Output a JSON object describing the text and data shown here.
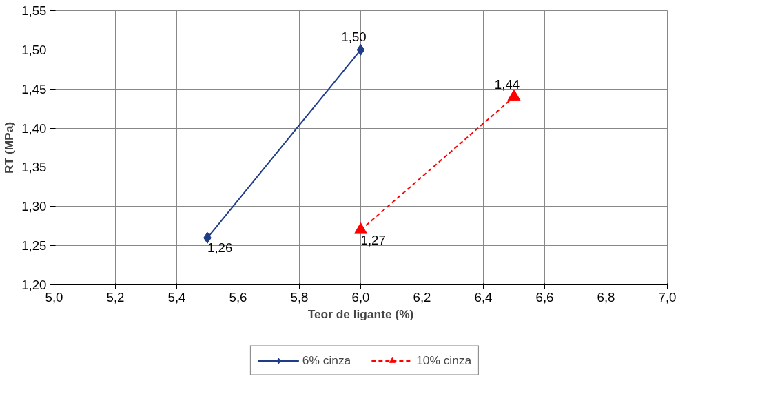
{
  "chart_data": {
    "type": "line",
    "xlabel": "Teor de ligante (%)",
    "ylabel": "RT (MPa)",
    "xlim": [
      5.0,
      7.0
    ],
    "ylim": [
      1.2,
      1.55
    ],
    "xticks": [
      {
        "value": 5.0,
        "label": "5,0"
      },
      {
        "value": 5.2,
        "label": "5,2"
      },
      {
        "value": 5.4,
        "label": "5,4"
      },
      {
        "value": 5.6,
        "label": "5,6"
      },
      {
        "value": 5.8,
        "label": "5,8"
      },
      {
        "value": 6.0,
        "label": "6,0"
      },
      {
        "value": 6.2,
        "label": "6,2"
      },
      {
        "value": 6.4,
        "label": "6,4"
      },
      {
        "value": 6.6,
        "label": "6,6"
      },
      {
        "value": 6.8,
        "label": "6,8"
      },
      {
        "value": 7.0,
        "label": "7,0"
      }
    ],
    "yticks": [
      {
        "value": 1.2,
        "label": "1,20"
      },
      {
        "value": 1.25,
        "label": "1,25"
      },
      {
        "value": 1.3,
        "label": "1,30"
      },
      {
        "value": 1.35,
        "label": "1,35"
      },
      {
        "value": 1.4,
        "label": "1,40"
      },
      {
        "value": 1.45,
        "label": "1,45"
      },
      {
        "value": 1.5,
        "label": "1,50"
      },
      {
        "value": 1.55,
        "label": "1,55"
      }
    ],
    "grid": true,
    "legend": "bottom",
    "series": [
      {
        "name": "6% cinza",
        "color": "#1f3c88",
        "x": [
          5.5,
          6.0
        ],
        "values": [
          1.26,
          1.5
        ],
        "value_labels": [
          "1,26",
          "1,50"
        ],
        "marker": "diamond",
        "line_style": "solid"
      },
      {
        "name": "10% cinza",
        "color": "#ff0000",
        "x": [
          6.0,
          6.5
        ],
        "values": [
          1.27,
          1.44
        ],
        "value_labels": [
          "1,27",
          "1,44"
        ],
        "marker": "triangle",
        "line_style": "dashed"
      }
    ]
  }
}
